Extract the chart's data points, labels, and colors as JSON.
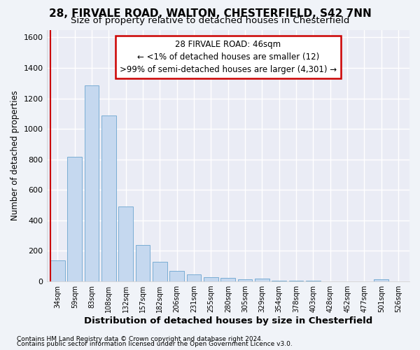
{
  "title1": "28, FIRVALE ROAD, WALTON, CHESTERFIELD, S42 7NN",
  "title2": "Size of property relative to detached houses in Chesterfield",
  "xlabel": "Distribution of detached houses by size in Chesterfield",
  "ylabel": "Number of detached properties",
  "footnote1": "Contains HM Land Registry data © Crown copyright and database right 2024.",
  "footnote2": "Contains public sector information licensed under the Open Government Licence v3.0.",
  "bar_labels": [
    "34sqm",
    "59sqm",
    "83sqm",
    "108sqm",
    "132sqm",
    "157sqm",
    "182sqm",
    "206sqm",
    "231sqm",
    "255sqm",
    "280sqm",
    "305sqm",
    "329sqm",
    "354sqm",
    "378sqm",
    "403sqm",
    "428sqm",
    "452sqm",
    "477sqm",
    "501sqm",
    "526sqm"
  ],
  "bar_values": [
    140,
    815,
    1285,
    1090,
    490,
    240,
    128,
    70,
    48,
    30,
    25,
    12,
    18,
    5,
    3,
    3,
    2,
    2,
    2,
    14,
    2
  ],
  "bar_color": "#c5d8ef",
  "bar_edge_color": "#7aadd4",
  "ylim": [
    0,
    1650
  ],
  "yticks": [
    0,
    200,
    400,
    600,
    800,
    1000,
    1200,
    1400,
    1600
  ],
  "marker_color": "#cc0000",
  "annotation_line1": "28 FIRVALE ROAD: 46sqm",
  "annotation_line2": "← <1% of detached houses are smaller (12)",
  "annotation_line3": ">99% of semi-detached houses are larger (4,301) →",
  "annotation_box_color": "#ffffff",
  "annotation_box_edge": "#cc0000",
  "bg_color": "#f0f3f8",
  "plot_bg_color": "#eaecf5",
  "grid_color": "#ffffff",
  "title1_fontsize": 11,
  "title2_fontsize": 9.5,
  "xlabel_fontsize": 9.5,
  "ylabel_fontsize": 8.5,
  "tick_fontsize": 8,
  "footnote_fontsize": 6.5
}
